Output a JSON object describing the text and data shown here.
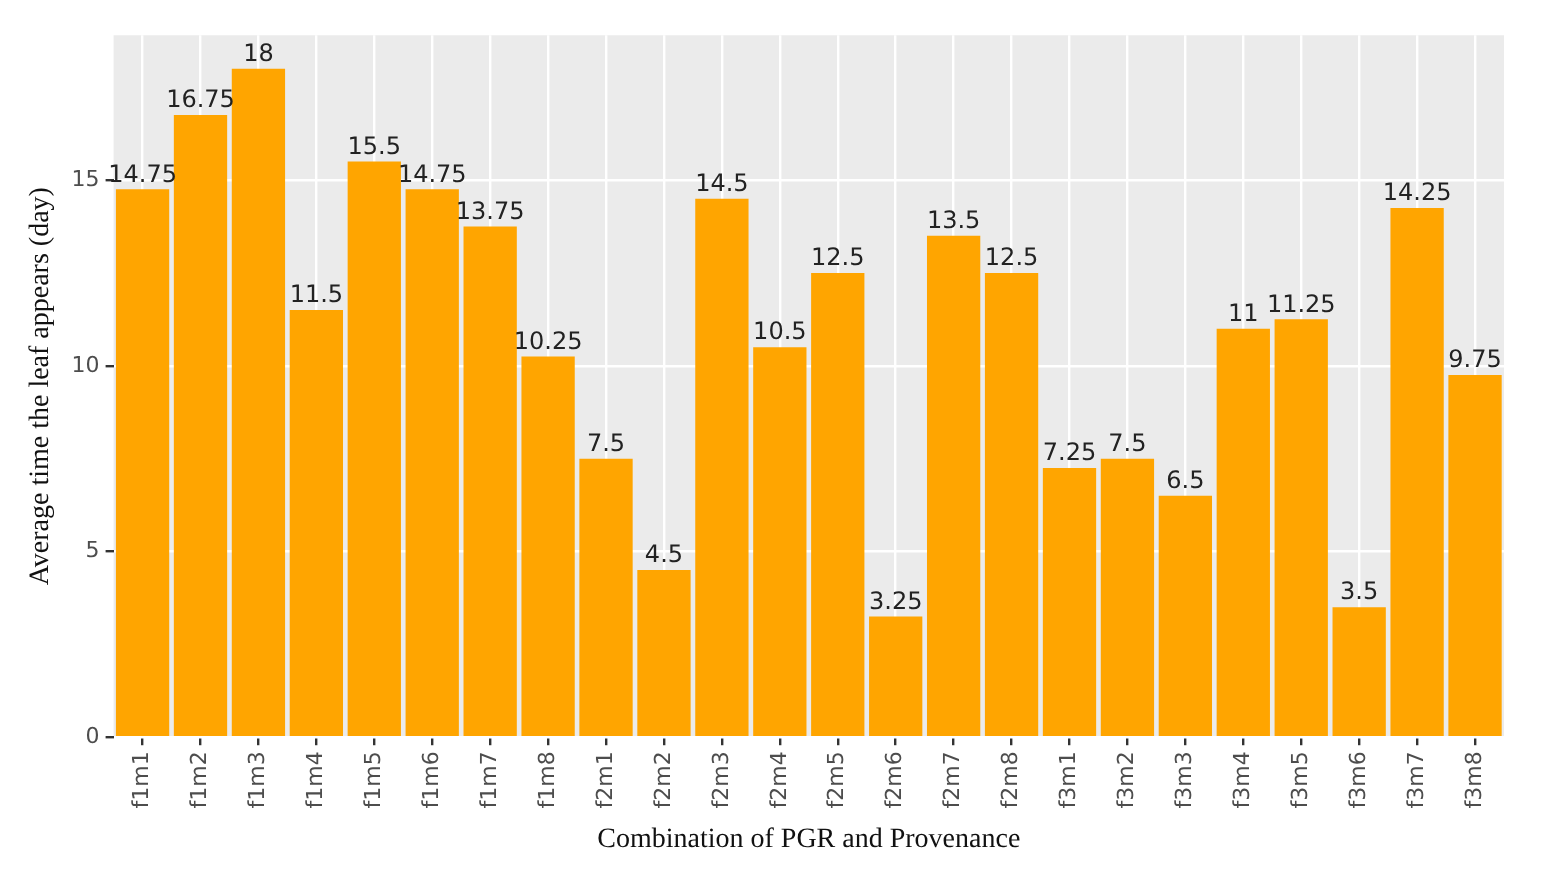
{
  "chart_data": {
    "type": "bar",
    "xlabel": "Combination of PGR and Provenance",
    "ylabel": "Average time the leaf appears (day)",
    "categories": [
      "f1m1",
      "f1m2",
      "f1m3",
      "f1m4",
      "f1m5",
      "f1m6",
      "f1m7",
      "f1m8",
      "f2m1",
      "f2m2",
      "f2m3",
      "f2m4",
      "f2m5",
      "f2m6",
      "f2m7",
      "f2m8",
      "f3m1",
      "f3m2",
      "f3m3",
      "f3m4",
      "f3m5",
      "f3m6",
      "f3m7",
      "f3m8"
    ],
    "values": [
      14.75,
      16.75,
      18,
      11.5,
      15.5,
      14.75,
      13.75,
      10.25,
      7.5,
      4.5,
      14.5,
      10.5,
      12.5,
      3.25,
      13.5,
      12.5,
      7.25,
      7.5,
      6.5,
      11,
      11.25,
      3.5,
      14.25,
      9.75
    ],
    "color": "#ffa500",
    "ylim": [
      0,
      18.9
    ],
    "yticks": [
      0,
      5,
      10,
      15
    ],
    "grid": true,
    "data_labels": true
  }
}
